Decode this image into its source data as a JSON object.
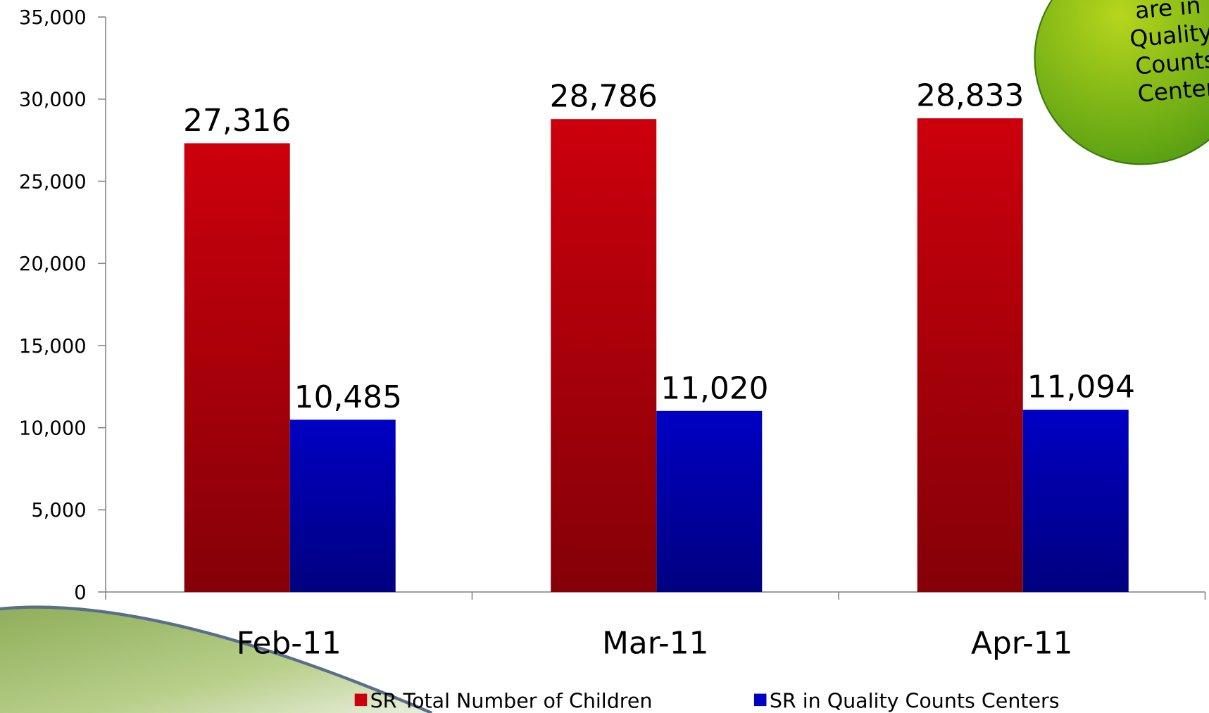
{
  "chart_data": {
    "type": "bar",
    "categories": [
      "Feb-11",
      "Mar-11",
      "Apr-11"
    ],
    "series": [
      {
        "name": "SR Total Number of Children",
        "color": "#cc000c",
        "values": [
          27316,
          28786,
          28833
        ],
        "value_labels": [
          "27,316",
          "28,786",
          "28,833"
        ]
      },
      {
        "name": "SR in Quality Counts Centers",
        "color": "#0000c4",
        "values": [
          10485,
          11020,
          11094
        ],
        "value_labels": [
          "10,485",
          "11,020",
          "11,094"
        ]
      }
    ],
    "ylim": [
      0,
      35000
    ],
    "yticks": [
      0,
      {
        "value": 5000,
        "label": "5,000"
      },
      {
        "value": 10000,
        "label": "10,000"
      },
      {
        "value": 15000,
        "label": "15,000"
      },
      {
        "value": 20000,
        "label": "20,000"
      },
      {
        "value": 25000,
        "label": "25,000"
      },
      {
        "value": 30000,
        "label": "30,000"
      },
      {
        "value": 35000,
        "label": "35,000"
      }
    ],
    "legend": "bottom",
    "annotation": [
      "are in",
      "Quality",
      "Counts",
      "Centers"
    ]
  }
}
